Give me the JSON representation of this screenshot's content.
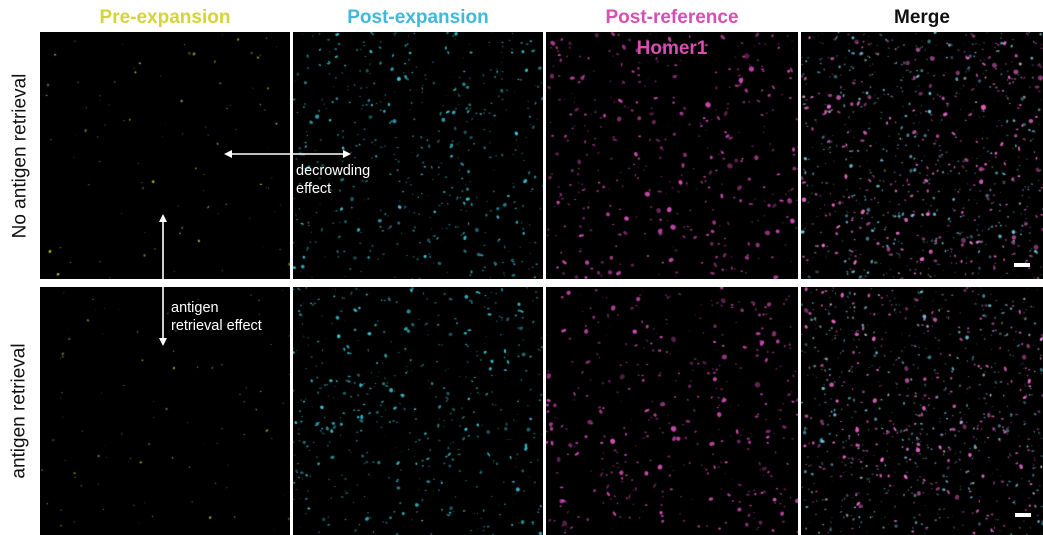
{
  "columns": [
    {
      "label": "Pre-expansion",
      "color": "#d4d43a"
    },
    {
      "label": "Post-expansion",
      "color": "#3fb8de"
    },
    {
      "label": "Post-reference",
      "color": "#d64fb2"
    },
    {
      "label": "Merge",
      "color": "#111111"
    }
  ],
  "rows": [
    {
      "label": "No antigen retrieval"
    },
    {
      "label": "antigen retrieval"
    }
  ],
  "post_reference_sublabel": "Homer1",
  "annotations": {
    "decrowding": "decrowding\neffect",
    "antigen_retrieval": "antigen\nretrieval effect"
  },
  "panel_colors": {
    "pre": "#e0e040",
    "post": "#3fd0e0",
    "ref": "#e050c0",
    "merge_a": "#ff70d8",
    "merge_b": "#80e8ff"
  }
}
